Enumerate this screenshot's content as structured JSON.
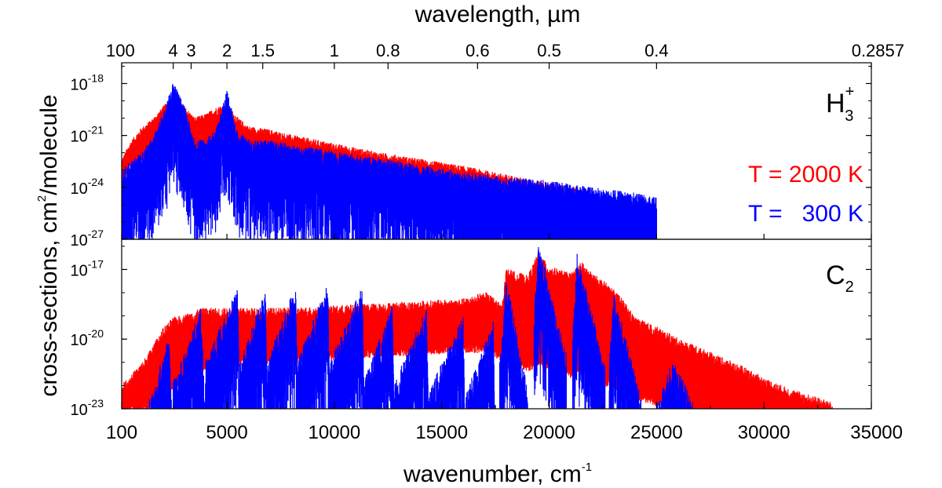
{
  "chart_data": {
    "type": "line",
    "xlabel_main": "wavenumber, cm",
    "xlabel_sup": "-1",
    "top_xlabel": "wavelength, µm",
    "ylabel_main": "cross-sections, cm",
    "ylabel_sup": "2",
    "ylabel_rest": "/molecule",
    "xlim": [
      100,
      35000
    ],
    "x_ticks": [
      {
        "value": 100,
        "label": "100"
      },
      {
        "value": 5000,
        "label": "5000"
      },
      {
        "value": 10000,
        "label": "10000"
      },
      {
        "value": 15000,
        "label": "15000"
      },
      {
        "value": 20000,
        "label": "20000"
      },
      {
        "value": 25000,
        "label": "25000"
      },
      {
        "value": 30000,
        "label": "30000"
      },
      {
        "value": 35000,
        "label": "35000"
      }
    ],
    "top_ticks": [
      {
        "value": 100,
        "label": "100"
      },
      {
        "value": 2500,
        "label": "4"
      },
      {
        "value": 3333,
        "label": "3"
      },
      {
        "value": 5000,
        "label": "2"
      },
      {
        "value": 6667,
        "label": "1.5"
      },
      {
        "value": 10000,
        "label": "1"
      },
      {
        "value": 12500,
        "label": "0.8"
      },
      {
        "value": 16667,
        "label": "0.6"
      },
      {
        "value": 20000,
        "label": "0.5"
      },
      {
        "value": 25000,
        "label": "0.4"
      },
      {
        "value": 35000,
        "label": "0.2857"
      }
    ],
    "panels": [
      {
        "molecule": "H",
        "molecule_sub": "3",
        "molecule_sup": "+",
        "ylim_log10": [
          -27,
          -16.8
        ],
        "y_ticks": [
          {
            "exp": -18,
            "base": "10",
            "label": "-18"
          },
          {
            "exp": -21,
            "base": "10",
            "label": "-21"
          },
          {
            "exp": -24,
            "base": "10",
            "label": "-24"
          },
          {
            "exp": -27,
            "base": "10",
            "label": "-27"
          }
        ],
        "legend": [
          {
            "label": "T = 2000 K",
            "color": "#ff0000"
          },
          {
            "label": "T =   300 K",
            "color": "#0000ff"
          }
        ],
        "series": [
          {
            "name": "T = 2000 K",
            "color": "#ff0000",
            "x": [
              100,
              500,
              1000,
              1500,
              2000,
              2500,
              3000,
              3500,
              4000,
              4500,
              5000,
              5500,
              6000,
              7000,
              8000,
              10000,
              12000,
              14000,
              16000,
              18000,
              20000,
              21000,
              22000,
              23000,
              24000,
              24500,
              25000
            ],
            "log10_top": [
              -22.6,
              -21.6,
              -20.8,
              -20.3,
              -19.6,
              -18.9,
              -19.5,
              -20.2,
              -20.0,
              -19.6,
              -19.4,
              -20.2,
              -20.7,
              -20.9,
              -21.2,
              -21.7,
              -22.2,
              -22.6,
              -23.0,
              -23.5,
              -24.0,
              -24.2,
              -24.5,
              -24.9,
              -25.3,
              -26.0,
              -26.6
            ],
            "log10_bottom": [
              -23.4,
              -22.6,
              -22.1,
              -21.8,
              -21.6,
              -21.6,
              -21.6,
              -21.5,
              -21.6,
              -21.4,
              -21.4,
              -21.7,
              -21.9,
              -22.1,
              -22.4,
              -22.9,
              -23.4,
              -23.9,
              -24.3,
              -24.8,
              -25.3,
              -25.6,
              -25.9,
              -26.3,
              -26.7,
              -27.0,
              -27.0
            ]
          },
          {
            "name": "T = 300 K",
            "color": "#0000ff",
            "x": [
              100,
              500,
              1000,
              1500,
              2000,
              2500,
              3000,
              3500,
              4000,
              4500,
              5000,
              5500,
              6000,
              7000,
              8000,
              10000,
              12000,
              14000,
              16000,
              18000,
              20000,
              22000,
              24000,
              25000
            ],
            "log10_top": [
              -23.0,
              -22.5,
              -22.0,
              -21.2,
              -19.8,
              -17.9,
              -19.2,
              -21.3,
              -21.2,
              -20.6,
              -18.4,
              -20.8,
              -21.2,
              -21.3,
              -21.5,
              -21.9,
              -22.3,
              -22.7,
              -23.1,
              -23.4,
              -23.6,
              -24.0,
              -24.3,
              -24.6
            ]
          }
        ]
      },
      {
        "molecule": "C",
        "molecule_sub": "2",
        "ylim_log10": [
          -23,
          -15.7
        ],
        "y_ticks": [
          {
            "exp": -17,
            "base": "10",
            "label": "-17"
          },
          {
            "exp": -20,
            "base": "10",
            "label": "-20"
          },
          {
            "exp": -23,
            "base": "10",
            "label": "-23"
          }
        ],
        "series": [
          {
            "name": "T = 2000 K",
            "color": "#ff0000",
            "x": [
              100,
              1000,
              1500,
              2000,
              2500,
              3000,
              3500,
              4000,
              6000,
              8000,
              10000,
              12000,
              14000,
              16000,
              17000,
              17500,
              17800,
              18000,
              19000,
              19500,
              20000,
              21000,
              21500,
              22000,
              22500,
              23000,
              23500,
              24000,
              25000,
              26000,
              27000,
              28000,
              29000,
              30000,
              31000,
              32000,
              33000,
              33200
            ],
            "log10_top": [
              -22.2,
              -21.3,
              -20.6,
              -19.8,
              -19.3,
              -19.2,
              -19.0,
              -18.9,
              -18.9,
              -18.9,
              -18.8,
              -18.7,
              -18.6,
              -18.5,
              -18.2,
              -18.5,
              -18.8,
              -17.2,
              -17.5,
              -16.5,
              -17.1,
              -17.4,
              -16.9,
              -17.4,
              -17.7,
              -18.1,
              -18.6,
              -19.3,
              -19.7,
              -20.2,
              -20.6,
              -21.0,
              -21.4,
              -21.9,
              -22.3,
              -22.6,
              -22.9,
              -23.0
            ],
            "log10_bottom": [
              -22.9,
              -22.8,
              -22.6,
              -22.4,
              -21.8,
              -21.5,
              -21.2,
              -21.0,
              -20.8,
              -20.6,
              -20.5,
              -20.4,
              -20.3,
              -20.2,
              -20.2,
              -20.4,
              -20.6,
              -20.6,
              -21.0,
              -20.8,
              -20.9,
              -21.3,
              -21.0,
              -21.3,
              -21.6,
              -21.8,
              -22.0,
              -22.3,
              -22.5,
              -22.7,
              -22.9,
              -23.0,
              -23.0,
              -23.0,
              -23.0,
              -23.0,
              -23.0,
              -23.0
            ]
          },
          {
            "name": "T = 300 K",
            "color": "#0000ff",
            "bands": [
              {
                "start": 1200,
                "peak": 2300,
                "end": 2500,
                "peak_log10": -19.9
              },
              {
                "start": 2500,
                "peak": 3800,
                "end": 4000,
                "peak_log10": -18.6
              },
              {
                "start": 4000,
                "peak": 5500,
                "end": 5600,
                "peak_log10": -17.7
              },
              {
                "start": 5600,
                "peak": 6800,
                "end": 6900,
                "peak_log10": -17.8
              },
              {
                "start": 6900,
                "peak": 8200,
                "end": 8300,
                "peak_log10": -17.6
              },
              {
                "start": 8300,
                "peak": 9700,
                "end": 9800,
                "peak_log10": -17.6
              },
              {
                "start": 9800,
                "peak": 11300,
                "end": 11400,
                "peak_log10": -17.7
              },
              {
                "start": 11400,
                "peak": 12700,
                "end": 12800,
                "peak_log10": -18.5
              },
              {
                "start": 12800,
                "peak": 14300,
                "end": 14400,
                "peak_log10": -18.6
              },
              {
                "start": 14400,
                "peak": 16000,
                "end": 16100,
                "peak_log10": -19.0
              },
              {
                "start": 16100,
                "peak": 17400,
                "end": 17500,
                "peak_log10": -19.2
              },
              {
                "start": 17700,
                "peak": 18000,
                "end": 19000,
                "peak_log10": -17.3
              },
              {
                "start": 19300,
                "peak": 19500,
                "end": 20800,
                "peak_log10": -15.8
              },
              {
                "start": 21100,
                "peak": 21300,
                "end": 22600,
                "peak_log10": -16.3
              },
              {
                "start": 22800,
                "peak": 23000,
                "end": 24300,
                "peak_log10": -17.8
              },
              {
                "start": 24500,
                "peak": 25800,
                "end": 28000,
                "peak_log10": -20.8
              }
            ]
          }
        ]
      }
    ]
  }
}
